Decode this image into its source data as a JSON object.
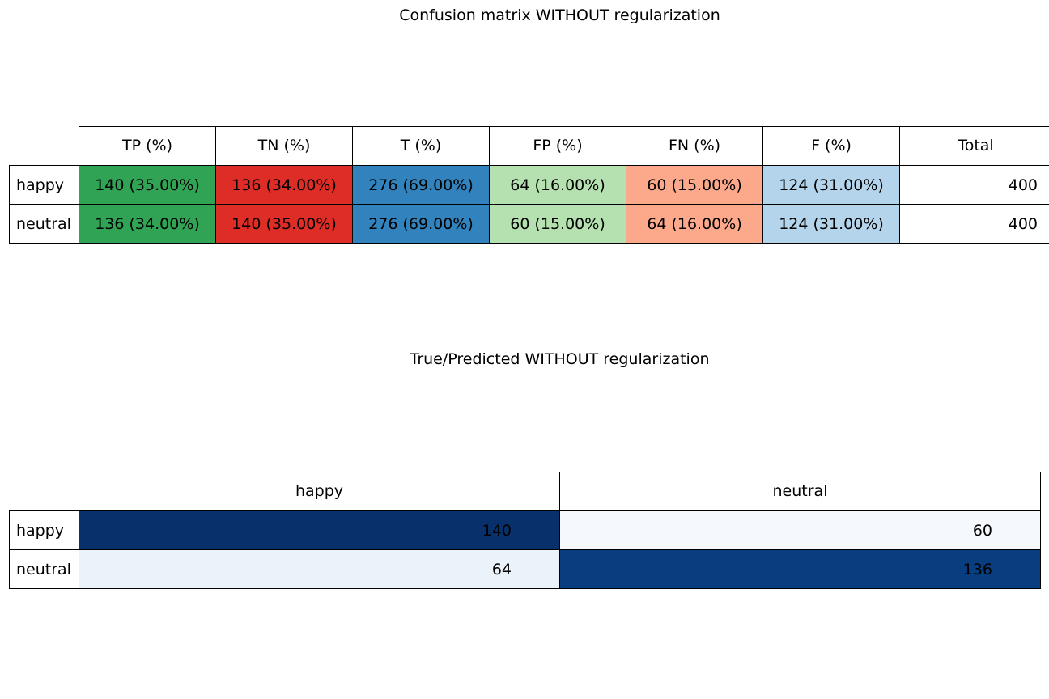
{
  "chart_data": [
    {
      "type": "table",
      "title": "Confusion matrix WITHOUT regularization",
      "columns": [
        "TP (%)",
        "TN (%)",
        "T (%)",
        "FP (%)",
        "FN (%)",
        "F (%)",
        "Total"
      ],
      "rows": [
        {
          "label": "happy",
          "cells": [
            "140 (35.00%)",
            "136 (34.00%)",
            "276 (69.00%)",
            "64 (16.00%)",
            "60 (15.00%)",
            "124 (31.00%)",
            "400"
          ]
        },
        {
          "label": "neutral",
          "cells": [
            "136 (34.00%)",
            "140 (35.00%)",
            "276 (69.00%)",
            "60 (15.00%)",
            "64 (16.00%)",
            "124 (31.00%)",
            "400"
          ]
        }
      ],
      "column_colors": [
        "#31a354",
        "#de2d26",
        "#3182bd",
        "#b5e0af",
        "#fca98b",
        "#b3d4ea",
        "#ffffff"
      ]
    },
    {
      "type": "heatmap",
      "title": "True/Predicted WITHOUT regularization",
      "columns": [
        "happy",
        "neutral"
      ],
      "rows": [
        {
          "label": "happy",
          "values": [
            140,
            60
          ]
        },
        {
          "label": "neutral",
          "values": [
            64,
            136
          ]
        }
      ],
      "colormap": "Blues",
      "colors": [
        [
          "#08306b",
          "#f5f9fe"
        ],
        [
          "#eaf2fa",
          "#083e80"
        ]
      ]
    }
  ]
}
